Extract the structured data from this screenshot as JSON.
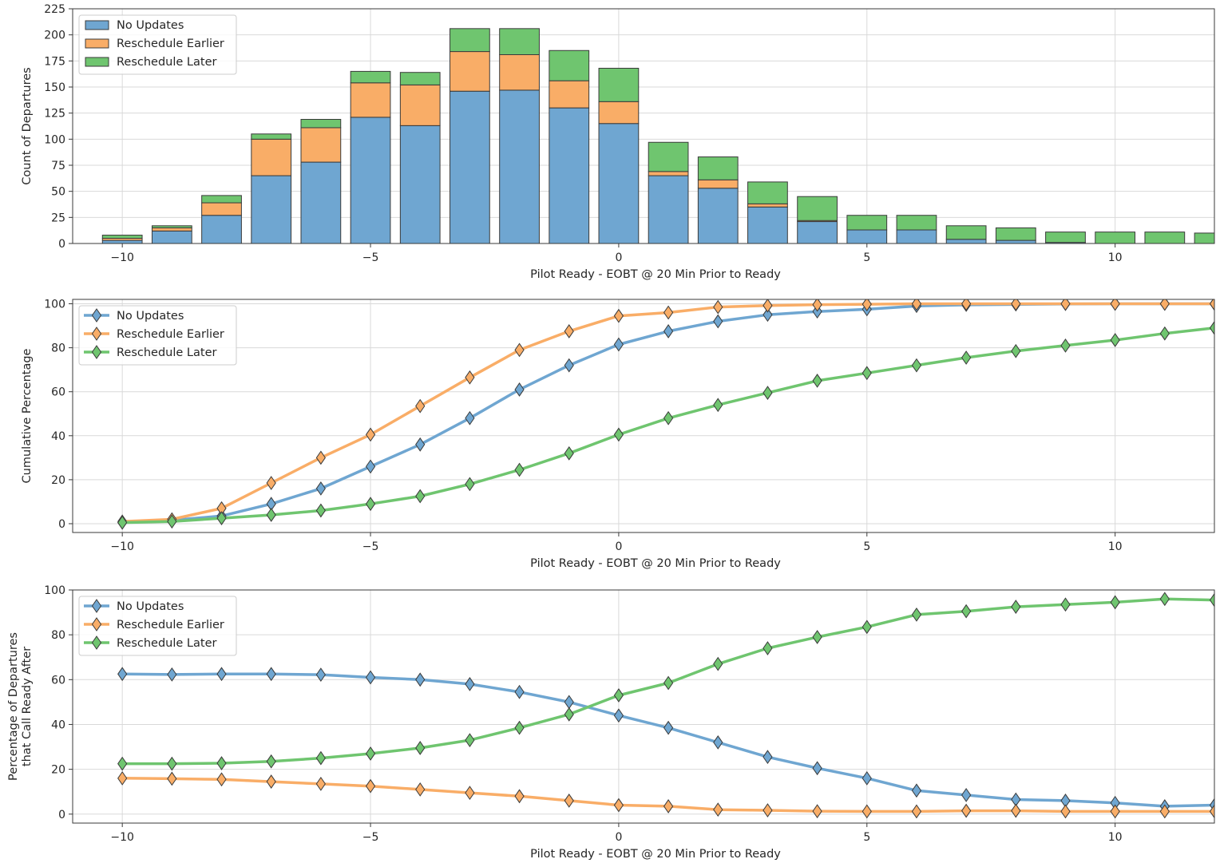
{
  "chart_data": [
    {
      "type": "bar",
      "stacked": true,
      "xlabel": "Pilot Ready - EOBT @ 20 Min Prior to Ready",
      "ylabel": "Count of Departures",
      "xlim": [
        -11,
        12
      ],
      "ylim": [
        0,
        225
      ],
      "xticks": [
        -10,
        -5,
        0,
        5,
        10
      ],
      "yticks": [
        0,
        25,
        50,
        75,
        100,
        125,
        150,
        175,
        200,
        225
      ],
      "grid": true,
      "legend_position": "top-left",
      "x": [
        -10,
        -9,
        -8,
        -7,
        -6,
        -5,
        -4,
        -3,
        -2,
        -1,
        0,
        1,
        2,
        3,
        4,
        5,
        6,
        7,
        8,
        9,
        10,
        11,
        12
      ],
      "series": [
        {
          "name": "No Updates",
          "color": "#6fa6d1",
          "values": [
            3,
            12,
            27,
            65,
            78,
            121,
            113,
            146,
            147,
            130,
            115,
            65,
            53,
            35,
            21,
            13,
            13,
            4,
            3,
            1,
            0,
            0,
            0
          ]
        },
        {
          "name": "Reschedule Earlier",
          "color": "#f9ad67",
          "values": [
            2,
            3,
            12,
            35,
            33,
            33,
            39,
            38,
            34,
            26,
            21,
            4,
            8,
            3,
            1,
            0,
            0,
            0,
            0,
            0,
            0,
            0,
            0
          ]
        },
        {
          "name": "Reschedule Later",
          "color": "#6fc56f",
          "values": [
            3,
            2,
            7,
            5,
            8,
            11,
            12,
            22,
            25,
            29,
            32,
            28,
            22,
            21,
            23,
            14,
            14,
            13,
            12,
            10,
            11,
            11,
            10
          ]
        }
      ]
    },
    {
      "type": "line",
      "marker": "diamond",
      "xlabel": "Pilot Ready - EOBT @ 20 Min Prior to Ready",
      "ylabel": "Cumulative Percentage",
      "xlim": [
        -11,
        12
      ],
      "ylim": [
        -4,
        102
      ],
      "xticks": [
        -10,
        -5,
        0,
        5,
        10
      ],
      "yticks": [
        0,
        20,
        40,
        60,
        80,
        100
      ],
      "grid": true,
      "legend_position": "top-left",
      "x": [
        -10,
        -9,
        -8,
        -7,
        -6,
        -5,
        -4,
        -3,
        -2,
        -1,
        0,
        1,
        2,
        3,
        4,
        5,
        6,
        7,
        8,
        9,
        10,
        11,
        12
      ],
      "series": [
        {
          "name": "No Updates",
          "color": "#6fa6d1",
          "values": [
            0.5,
            1.5,
            3.5,
            9,
            16,
            26,
            36,
            48,
            61,
            72,
            81.5,
            87.5,
            92,
            95,
            96.5,
            97.5,
            99,
            99.5,
            99.7,
            99.9,
            100,
            100,
            100
          ]
        },
        {
          "name": "Reschedule Earlier",
          "color": "#f9ad67",
          "values": [
            1,
            2,
            7,
            18.5,
            30,
            40.5,
            53.5,
            66.5,
            79,
            87.5,
            94.5,
            96,
            98.5,
            99.2,
            99.6,
            99.8,
            100,
            100,
            100,
            100,
            100,
            100,
            100
          ]
        },
        {
          "name": "Reschedule Later",
          "color": "#6fc56f",
          "values": [
            0.5,
            1,
            2.5,
            4,
            6,
            9,
            12.5,
            18,
            24.5,
            32,
            40.5,
            48,
            54,
            59.5,
            65,
            68.5,
            72,
            75.5,
            78.5,
            81,
            83.5,
            86.5,
            89
          ]
        }
      ]
    },
    {
      "type": "line",
      "marker": "diamond",
      "xlabel": "Pilot Ready - EOBT @ 20 Min Prior to Ready",
      "ylabel": "Percentage of Departures\nthat Call Ready After",
      "ylabel_lines": [
        "Percentage of Departures",
        "that Call Ready After"
      ],
      "xlim": [
        -11,
        12
      ],
      "ylim": [
        -4,
        100
      ],
      "xticks": [
        -10,
        -5,
        0,
        5,
        10
      ],
      "yticks": [
        0,
        20,
        40,
        60,
        80,
        100
      ],
      "grid": true,
      "legend_position": "top-left",
      "x": [
        -10,
        -9,
        -8,
        -7,
        -6,
        -5,
        -4,
        -3,
        -2,
        -1,
        0,
        1,
        2,
        3,
        4,
        5,
        6,
        7,
        8,
        9,
        10,
        11,
        12
      ],
      "series": [
        {
          "name": "No Updates",
          "color": "#6fa6d1",
          "values": [
            62.5,
            62.3,
            62.5,
            62.5,
            62.2,
            61,
            60,
            58,
            54.5,
            50,
            44,
            38.5,
            32,
            25.5,
            20.5,
            16,
            10.5,
            8.5,
            6.5,
            6,
            5,
            3.5,
            4
          ]
        },
        {
          "name": "Reschedule Earlier",
          "color": "#f9ad67",
          "values": [
            16,
            15.8,
            15.5,
            14.5,
            13.5,
            12.5,
            11,
            9.5,
            8,
            6,
            4,
            3.5,
            2,
            1.7,
            1.3,
            1.2,
            1.2,
            1.5,
            1.5,
            1.2,
            1.2,
            1.2,
            1.2
          ]
        },
        {
          "name": "Reschedule Later",
          "color": "#6fc56f",
          "values": [
            22.5,
            22.5,
            22.7,
            23.5,
            25,
            27,
            29.5,
            33,
            38.5,
            44.5,
            53,
            58.5,
            67,
            74,
            79,
            83.5,
            89,
            90.5,
            92.5,
            93.5,
            94.5,
            96,
            95.5
          ]
        }
      ]
    }
  ]
}
